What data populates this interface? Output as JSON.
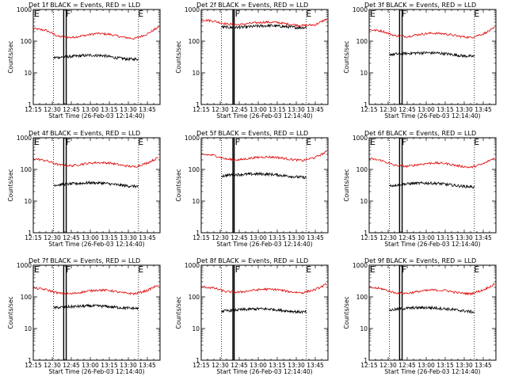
{
  "chart_data": [
    {
      "type": "line",
      "title": "Det 1f BLACK = Events, RED = LLD",
      "xlabel": "Start Time (26-Feb-03 12:14:40)",
      "ylabel": "Counts/sec",
      "yscale": "log",
      "ylim": [
        1,
        1000
      ],
      "yticks": [
        "1",
        "10",
        "100",
        "1000"
      ],
      "xlim": [
        "12:15",
        "13:55"
      ],
      "xticks": [
        "12:15",
        "12:30",
        "12:45",
        "13:00",
        "13:15",
        "13:30",
        "13:45"
      ],
      "flags": [
        {
          "label": "E",
          "x": "12:15"
        },
        {
          "label": "F",
          "x": "12:40"
        },
        {
          "label": "E",
          "x": "13:37"
        }
      ],
      "vlines": {
        "dotted": [
          "12:31",
          "13:38"
        ],
        "solid": [
          "12:39",
          "12:41"
        ]
      },
      "series": [
        {
          "name": "LLD",
          "color": "#e00000",
          "x": [
            "12:15",
            "12:25",
            "12:35",
            "12:45",
            "12:55",
            "13:05",
            "13:15",
            "13:25",
            "13:35",
            "13:45",
            "13:54"
          ],
          "y": [
            250,
            220,
            140,
            130,
            150,
            175,
            165,
            135,
            120,
            170,
            280
          ]
        },
        {
          "name": "Events",
          "color": "#000000",
          "x": [
            "12:31",
            "12:40",
            "12:50",
            "13:00",
            "13:10",
            "13:20",
            "13:30",
            "13:38"
          ],
          "y": [
            30,
            32,
            34,
            36,
            35,
            30,
            27,
            27
          ]
        }
      ]
    },
    {
      "type": "line",
      "title": "Det 2f BLACK = Events, RED = LLD",
      "xlabel": "Start Time (26-Feb-03 12:14:40)",
      "ylabel": "Counts/sec",
      "yscale": "log",
      "ylim": [
        1,
        1000
      ],
      "yticks": [
        "1",
        "10",
        "100",
        "1000"
      ],
      "xlim": [
        "12:15",
        "13:55"
      ],
      "xticks": [
        "12:15",
        "12:30",
        "12:45",
        "13:00",
        "13:15",
        "13:30",
        "13:45"
      ],
      "flags": [
        {
          "label": "F",
          "x": "12:41"
        },
        {
          "label": "E",
          "x": "13:37"
        }
      ],
      "vlines": {
        "dotted": [
          "12:31",
          "13:38"
        ],
        "solid": [
          "12:40",
          "12:41"
        ]
      },
      "series": [
        {
          "name": "LLD",
          "color": "#e00000",
          "x": [
            "12:15",
            "12:25",
            "12:35",
            "12:45",
            "12:55",
            "13:05",
            "13:15",
            "13:25",
            "13:35",
            "13:45",
            "13:54"
          ],
          "y": [
            480,
            430,
            350,
            330,
            370,
            400,
            390,
            340,
            310,
            330,
            500
          ]
        },
        {
          "name": "Events",
          "color": "#000000",
          "x": [
            "12:31",
            "12:40",
            "12:50",
            "13:00",
            "13:10",
            "13:20",
            "13:30",
            "13:38"
          ],
          "y": [
            280,
            270,
            280,
            300,
            310,
            290,
            270,
            270
          ]
        }
      ]
    },
    {
      "type": "line",
      "title": "Det 3f BLACK = Events, RED = LLD",
      "xlabel": "Start Time (26-Feb-03 12:14:40)",
      "ylabel": "Counts/sec",
      "yscale": "log",
      "ylim": [
        1,
        1000
      ],
      "yticks": [
        "1",
        "10",
        "100",
        "1000"
      ],
      "xlim": [
        "12:15",
        "13:55"
      ],
      "xticks": [
        "12:15",
        "12:30",
        "12:45",
        "13:00",
        "13:15",
        "13:30",
        "13:45"
      ],
      "flags": [
        {
          "label": "E",
          "x": "12:15"
        },
        {
          "label": "F",
          "x": "12:40"
        },
        {
          "label": "E",
          "x": "13:37"
        }
      ],
      "vlines": {
        "dotted": [
          "12:31",
          "13:38"
        ],
        "solid": [
          "12:39",
          "12:41"
        ]
      },
      "series": [
        {
          "name": "LLD",
          "color": "#e00000",
          "x": [
            "12:15",
            "12:25",
            "12:35",
            "12:45",
            "12:55",
            "13:05",
            "13:15",
            "13:25",
            "13:35",
            "13:45",
            "13:54"
          ],
          "y": [
            230,
            210,
            150,
            140,
            165,
            180,
            170,
            145,
            130,
            170,
            260
          ]
        },
        {
          "name": "Events",
          "color": "#000000",
          "x": [
            "12:31",
            "12:40",
            "12:50",
            "13:00",
            "13:10",
            "13:20",
            "13:30",
            "13:38"
          ],
          "y": [
            38,
            40,
            42,
            43,
            42,
            38,
            34,
            33
          ]
        }
      ]
    },
    {
      "type": "line",
      "title": "Det 4f BLACK = Events, RED = LLD",
      "xlabel": "Start Time (26-Feb-03 12:14:40)",
      "ylabel": "Counts/sec",
      "yscale": "log",
      "ylim": [
        1,
        1000
      ],
      "yticks": [
        "1",
        "10",
        "100",
        "1000"
      ],
      "xlim": [
        "12:15",
        "13:55"
      ],
      "xticks": [
        "12:15",
        "12:30",
        "12:45",
        "13:00",
        "13:15",
        "13:30",
        "13:45"
      ],
      "flags": [
        {
          "label": "E",
          "x": "12:15"
        },
        {
          "label": "F",
          "x": "12:40"
        },
        {
          "label": "E",
          "x": "13:37"
        }
      ],
      "vlines": {
        "dotted": [
          "12:31",
          "13:38"
        ],
        "solid": [
          "12:39",
          "12:41"
        ]
      },
      "series": [
        {
          "name": "LLD",
          "color": "#e00000",
          "x": [
            "12:15",
            "12:25",
            "12:35",
            "12:45",
            "12:55",
            "13:05",
            "13:15",
            "13:25",
            "13:35",
            "13:45",
            "13:54"
          ],
          "y": [
            220,
            190,
            140,
            130,
            150,
            165,
            160,
            135,
            120,
            160,
            240
          ]
        },
        {
          "name": "Events",
          "color": "#000000",
          "x": [
            "12:31",
            "12:40",
            "12:50",
            "13:00",
            "13:10",
            "13:20",
            "13:30",
            "13:38"
          ],
          "y": [
            32,
            34,
            36,
            38,
            37,
            33,
            30,
            29
          ]
        }
      ]
    },
    {
      "type": "line",
      "title": "Det 5f BLACK = Events, RED = LLD",
      "xlabel": "Start Time (26-Feb-03 12:14:40)",
      "ylabel": "Counts/sec",
      "yscale": "log",
      "ylim": [
        1,
        1000
      ],
      "yticks": [
        "1",
        "10",
        "100",
        "1000"
      ],
      "xlim": [
        "12:15",
        "13:55"
      ],
      "xticks": [
        "12:15",
        "12:30",
        "12:45",
        "13:00",
        "13:15",
        "13:30",
        "13:45"
      ],
      "flags": [
        {
          "label": "F",
          "x": "12:41"
        },
        {
          "label": "E",
          "x": "13:37"
        }
      ],
      "vlines": {
        "dotted": [
          "12:31",
          "13:38"
        ],
        "solid": [
          "12:40",
          "12:41"
        ]
      },
      "series": [
        {
          "name": "LLD",
          "color": "#e00000",
          "x": [
            "12:15",
            "12:25",
            "12:35",
            "12:45",
            "12:55",
            "13:05",
            "13:15",
            "13:25",
            "13:35",
            "13:45",
            "13:54"
          ],
          "y": [
            300,
            280,
            210,
            200,
            230,
            250,
            240,
            210,
            190,
            240,
            360
          ]
        },
        {
          "name": "Events",
          "color": "#000000",
          "x": [
            "12:31",
            "12:40",
            "12:50",
            "13:00",
            "13:10",
            "13:20",
            "13:30",
            "13:38"
          ],
          "y": [
            62,
            68,
            70,
            72,
            70,
            64,
            58,
            55
          ]
        }
      ]
    },
    {
      "type": "line",
      "title": "Det 6f BLACK = Events, RED = LLD",
      "xlabel": "Start Time (26-Feb-03 12:14:40)",
      "ylabel": "Counts/sec",
      "yscale": "log",
      "ylim": [
        1,
        1000
      ],
      "yticks": [
        "1",
        "10",
        "100",
        "1000"
      ],
      "xlim": [
        "12:15",
        "13:55"
      ],
      "xticks": [
        "12:15",
        "12:30",
        "12:45",
        "13:00",
        "13:15",
        "13:30",
        "13:45"
      ],
      "flags": [
        {
          "label": "E",
          "x": "12:15"
        },
        {
          "label": "F",
          "x": "12:40"
        },
        {
          "label": "E",
          "x": "13:37"
        }
      ],
      "vlines": {
        "dotted": [
          "12:31",
          "13:38"
        ],
        "solid": [
          "12:39",
          "12:41"
        ]
      },
      "series": [
        {
          "name": "LLD",
          "color": "#e00000",
          "x": [
            "12:15",
            "12:25",
            "12:35",
            "12:45",
            "12:55",
            "13:05",
            "13:15",
            "13:25",
            "13:35",
            "13:45",
            "13:54"
          ],
          "y": [
            220,
            190,
            135,
            125,
            145,
            160,
            155,
            130,
            115,
            150,
            230
          ]
        },
        {
          "name": "Events",
          "color": "#000000",
          "x": [
            "12:31",
            "12:40",
            "12:50",
            "13:00",
            "13:10",
            "13:20",
            "13:30",
            "13:38"
          ],
          "y": [
            30,
            34,
            36,
            37,
            36,
            32,
            29,
            28
          ]
        }
      ]
    },
    {
      "type": "line",
      "title": "Det 7f BLACK = Events, RED = LLD",
      "xlabel": "Start Time (26-Feb-03 12:14:40)",
      "ylabel": "Counts/sec",
      "yscale": "log",
      "ylim": [
        1,
        1000
      ],
      "yticks": [
        "1",
        "10",
        "100",
        "1000"
      ],
      "xlim": [
        "12:15",
        "13:55"
      ],
      "xticks": [
        "12:15",
        "12:30",
        "12:45",
        "13:00",
        "13:15",
        "13:30",
        "13:45"
      ],
      "flags": [
        {
          "label": "E",
          "x": "12:15"
        },
        {
          "label": "F",
          "x": "12:40"
        },
        {
          "label": "E",
          "x": "13:37"
        }
      ],
      "vlines": {
        "dotted": [
          "12:31",
          "13:38"
        ],
        "solid": [
          "12:39",
          "12:41"
        ]
      },
      "series": [
        {
          "name": "LLD",
          "color": "#e00000",
          "x": [
            "12:15",
            "12:25",
            "12:35",
            "12:45",
            "12:55",
            "13:05",
            "13:15",
            "13:25",
            "13:35",
            "13:45",
            "13:54"
          ],
          "y": [
            190,
            170,
            130,
            125,
            145,
            165,
            160,
            135,
            125,
            160,
            240
          ]
        },
        {
          "name": "Events",
          "color": "#000000",
          "x": [
            "12:31",
            "12:40",
            "12:50",
            "13:00",
            "13:10",
            "13:20",
            "13:30",
            "13:38"
          ],
          "y": [
            45,
            48,
            50,
            52,
            51,
            47,
            44,
            43
          ]
        }
      ]
    },
    {
      "type": "line",
      "title": "Det 8f BLACK = Events, RED = LLD",
      "xlabel": "Start Time (26-Feb-03 12:14:40)",
      "ylabel": "Counts/sec",
      "yscale": "log",
      "ylim": [
        1,
        1000
      ],
      "yticks": [
        "1",
        "10",
        "100",
        "1000"
      ],
      "xlim": [
        "12:15",
        "13:55"
      ],
      "xticks": [
        "12:15",
        "12:30",
        "12:45",
        "13:00",
        "13:15",
        "13:30",
        "13:45"
      ],
      "flags": [
        {
          "label": "F",
          "x": "12:41"
        },
        {
          "label": "E",
          "x": "13:37"
        }
      ],
      "vlines": {
        "dotted": [
          "12:31",
          "13:38"
        ],
        "solid": [
          "12:40",
          "12:41"
        ]
      },
      "series": [
        {
          "name": "LLD",
          "color": "#e00000",
          "x": [
            "12:15",
            "12:25",
            "12:35",
            "12:45",
            "12:55",
            "13:05",
            "13:15",
            "13:25",
            "13:35",
            "13:45",
            "13:54"
          ],
          "y": [
            210,
            190,
            145,
            140,
            160,
            175,
            170,
            145,
            135,
            170,
            250
          ]
        },
        {
          "name": "Events",
          "color": "#000000",
          "x": [
            "12:31",
            "12:40",
            "12:50",
            "13:00",
            "13:10",
            "13:20",
            "13:30",
            "13:38"
          ],
          "y": [
            35,
            38,
            40,
            42,
            41,
            37,
            34,
            33
          ]
        }
      ]
    },
    {
      "type": "line",
      "title": "Det 9f BLACK = Events, RED = LLD",
      "xlabel": "Start Time (26-Feb-03 12:14:40)",
      "ylabel": "Counts/sec",
      "yscale": "log",
      "ylim": [
        1,
        1000
      ],
      "yticks": [
        "1",
        "10",
        "100",
        "1000"
      ],
      "xlim": [
        "12:15",
        "13:55"
      ],
      "xticks": [
        "12:15",
        "12:30",
        "12:45",
        "13:00",
        "13:15",
        "13:30",
        "13:45"
      ],
      "flags": [
        {
          "label": "E",
          "x": "12:15"
        },
        {
          "label": "F",
          "x": "12:40"
        },
        {
          "label": "E",
          "x": "13:37"
        }
      ],
      "vlines": {
        "dotted": [
          "12:31",
          "13:38"
        ],
        "solid": [
          "12:39",
          "12:41"
        ]
      },
      "series": [
        {
          "name": "LLD",
          "color": "#e00000",
          "x": [
            "12:15",
            "12:25",
            "12:35",
            "12:45",
            "12:55",
            "13:05",
            "13:15",
            "13:25",
            "13:35",
            "13:45",
            "13:54"
          ],
          "y": [
            200,
            180,
            135,
            130,
            150,
            165,
            160,
            135,
            125,
            165,
            250
          ]
        },
        {
          "name": "Events",
          "color": "#000000",
          "x": [
            "12:31",
            "12:40",
            "12:50",
            "13:00",
            "13:10",
            "13:20",
            "13:30",
            "13:38"
          ],
          "y": [
            38,
            42,
            45,
            46,
            44,
            40,
            36,
            33
          ]
        }
      ]
    }
  ]
}
